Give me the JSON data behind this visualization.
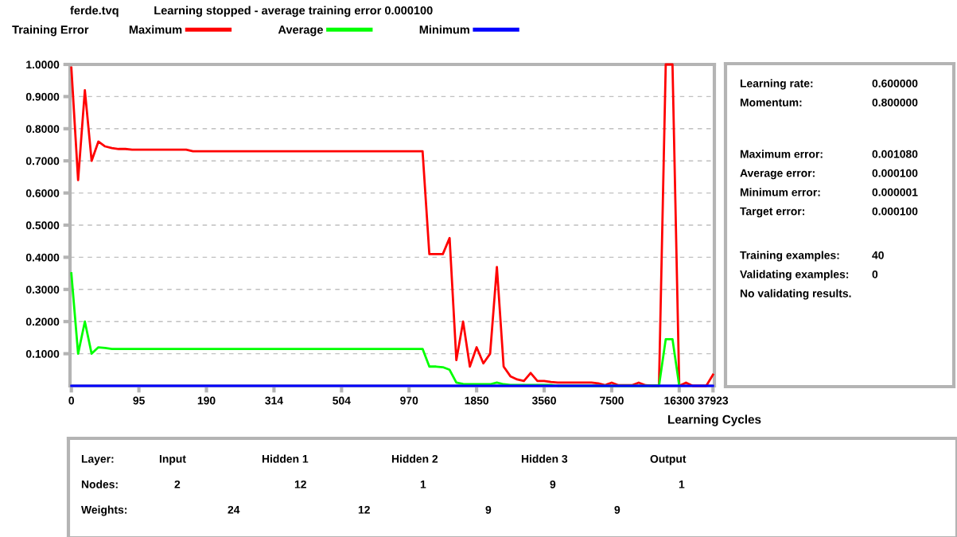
{
  "chart_data": [
    {
      "type": "line",
      "title": "Learning stopped - average training error 0.000100",
      "ylabel": "Training Error",
      "xlabel": "Learning Cycles",
      "annotations": [
        "ferde.tvq"
      ],
      "categories": [
        "0",
        null,
        null,
        null,
        null,
        null,
        null,
        null,
        null,
        null,
        "95",
        null,
        null,
        null,
        null,
        null,
        null,
        null,
        null,
        null,
        "190",
        null,
        null,
        null,
        null,
        null,
        null,
        null,
        null,
        null,
        "314",
        null,
        null,
        null,
        null,
        null,
        null,
        null,
        null,
        null,
        "504",
        null,
        null,
        null,
        null,
        null,
        null,
        null,
        null,
        null,
        "970",
        null,
        null,
        null,
        null,
        null,
        null,
        null,
        null,
        null,
        "1850",
        null,
        null,
        null,
        null,
        null,
        null,
        null,
        null,
        null,
        "3560",
        null,
        null,
        null,
        null,
        null,
        null,
        null,
        null,
        null,
        "7500",
        null,
        null,
        null,
        null,
        null,
        null,
        null,
        null,
        null,
        "16300",
        null,
        null,
        null,
        null,
        "37923"
      ],
      "series": [
        {
          "name": "Maximum",
          "color": "#ff0000",
          "values": [
            0.99,
            0.64,
            0.92,
            0.7,
            0.76,
            0.745,
            0.74,
            0.737,
            0.737,
            0.735,
            0.735,
            0.735,
            0.735,
            0.735,
            0.735,
            0.735,
            0.735,
            0.735,
            0.73,
            0.73,
            0.73,
            0.73,
            0.73,
            0.73,
            0.73,
            0.73,
            0.73,
            0.73,
            0.73,
            0.73,
            0.73,
            0.73,
            0.73,
            0.73,
            0.73,
            0.73,
            0.73,
            0.73,
            0.73,
            0.73,
            0.73,
            0.73,
            0.73,
            0.73,
            0.73,
            0.73,
            0.73,
            0.73,
            0.73,
            0.73,
            0.73,
            0.73,
            0.73,
            0.41,
            0.41,
            0.41,
            0.46,
            0.08,
            0.2,
            0.06,
            0.12,
            0.07,
            0.1,
            0.37,
            0.06,
            0.03,
            0.02,
            0.015,
            0.04,
            0.015,
            0.015,
            0.012,
            0.01,
            0.01,
            0.01,
            0.01,
            0.01,
            0.01,
            0.008,
            0.002,
            0.01,
            0.002,
            0.002,
            0.002,
            0.01,
            0.002,
            0.0,
            0.0,
            1.0,
            1.0,
            0.0,
            0.01,
            0.0,
            0.0,
            0.0,
            0.035
          ]
        },
        {
          "name": "Average",
          "color": "#00ff00",
          "values": [
            0.35,
            0.1,
            0.2,
            0.1,
            0.12,
            0.118,
            0.115,
            0.115,
            0.115,
            0.115,
            0.115,
            0.115,
            0.115,
            0.115,
            0.115,
            0.115,
            0.115,
            0.115,
            0.115,
            0.115,
            0.115,
            0.115,
            0.115,
            0.115,
            0.115,
            0.115,
            0.115,
            0.115,
            0.115,
            0.115,
            0.115,
            0.115,
            0.115,
            0.115,
            0.115,
            0.115,
            0.115,
            0.115,
            0.115,
            0.115,
            0.115,
            0.115,
            0.115,
            0.115,
            0.115,
            0.115,
            0.115,
            0.115,
            0.115,
            0.115,
            0.115,
            0.115,
            0.115,
            0.06,
            0.06,
            0.058,
            0.05,
            0.01,
            0.006,
            0.005,
            0.005,
            0.005,
            0.005,
            0.01,
            0.005,
            0.003,
            0.003,
            0.003,
            0.003,
            0.003,
            0.003,
            0.003,
            0.0,
            0.0,
            0.0,
            0.0,
            0.0,
            0.0,
            0.0,
            0.0,
            0.0,
            0.0,
            0.0,
            0.0,
            0.0,
            0.0,
            0.0,
            0.0,
            0.145,
            0.145,
            0.0,
            null,
            null,
            null,
            null,
            null
          ]
        },
        {
          "name": "Minimum",
          "color": "#0000ff",
          "values": [
            0,
            0,
            0,
            0,
            0,
            0,
            0,
            0,
            0,
            0,
            0,
            0,
            0,
            0,
            0,
            0,
            0,
            0,
            0,
            0,
            0,
            0,
            0,
            0,
            0,
            0,
            0,
            0,
            0,
            0,
            0,
            0,
            0,
            0,
            0,
            0,
            0,
            0,
            0,
            0,
            0,
            0,
            0,
            0,
            0,
            0,
            0,
            0,
            0,
            0,
            0,
            0,
            0,
            0,
            0,
            0,
            0,
            0,
            0,
            0,
            0,
            0,
            0,
            0,
            0,
            0,
            0,
            0,
            0,
            0,
            0,
            0,
            0,
            0,
            0,
            0,
            0,
            0,
            0,
            0,
            0,
            0,
            0,
            0,
            0,
            0,
            0,
            0,
            0,
            0,
            0,
            0,
            0,
            0,
            0,
            0
          ]
        }
      ],
      "ylim": [
        0,
        1.0
      ],
      "yticks": [
        {
          "value": 0.1,
          "label": "0.1000"
        },
        {
          "value": 0.2,
          "label": "0.2000"
        },
        {
          "value": 0.3,
          "label": "0.3000"
        },
        {
          "value": 0.4,
          "label": "0.4000"
        },
        {
          "value": 0.5,
          "label": "0.5000"
        },
        {
          "value": 0.6,
          "label": "0.6000"
        },
        {
          "value": 0.7,
          "label": "0.7000"
        },
        {
          "value": 0.8,
          "label": "0.8000"
        },
        {
          "value": 0.9,
          "label": "0.9000"
        },
        {
          "value": 1.0,
          "label": "1.0000"
        }
      ],
      "grid": "y",
      "legend": "top",
      "marker": "none",
      "line_style": "solid"
    },
    {
      "type": "other",
      "annotations": [
        "Learning rate:",
        "0.600000",
        "Momentum:",
        "0.800000",
        "Maximum error:",
        "0.001080",
        "Average error:",
        "0.000100",
        "Minimum error:",
        "0.000001",
        "Target error:",
        "0.000100",
        "Training examples:",
        "40",
        "Validating examples:",
        "0",
        "No validating results."
      ]
    },
    {
      "type": "other",
      "annotations": [
        "Layer:",
        "Input",
        "Hidden 1",
        "Hidden 2",
        "Hidden 3",
        "Output",
        "Nodes:",
        "2",
        "12",
        "1",
        "9",
        "1",
        "Weights:",
        "24",
        "12",
        "9",
        "9"
      ]
    }
  ]
}
